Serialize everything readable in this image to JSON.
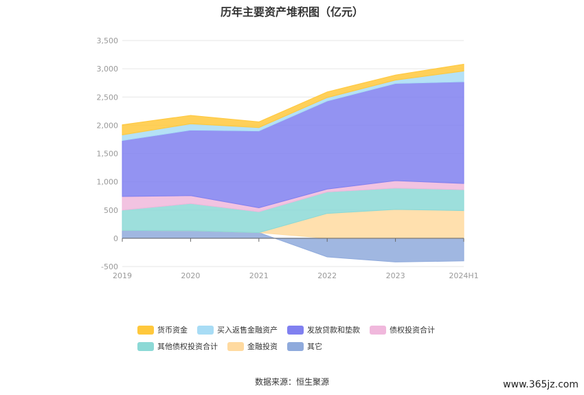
{
  "chart_data": {
    "type": "area",
    "title": "历年主要资产堆积图（亿元）",
    "categories": [
      "2019",
      "2020",
      "2021",
      "2022",
      "2023",
      "2024H1"
    ],
    "ylim": [
      -500,
      3500
    ],
    "yticks": [
      "3,500",
      "3,000",
      "2,500",
      "2,000",
      "1,500",
      "1,000",
      "500",
      "0",
      "-500"
    ],
    "ytick_values": [
      3500,
      3000,
      2500,
      2000,
      1500,
      1000,
      500,
      0,
      -500
    ],
    "grid": true,
    "legend_position": "bottom",
    "stacked": true,
    "series": [
      {
        "name": "其它",
        "color": "#8faadc",
        "values": [
          140,
          135,
          100,
          -330,
          -420,
          -400
        ]
      },
      {
        "name": "金融投资",
        "color": "#ffdaa0",
        "values": [
          0,
          0,
          0,
          440,
          510,
          490
        ]
      },
      {
        "name": "其他债权投资合计",
        "color": "#8cd9d6",
        "values": [
          360,
          480,
          370,
          380,
          380,
          370
        ]
      },
      {
        "name": "债权投资合计",
        "color": "#f0b8dc",
        "values": [
          240,
          140,
          70,
          50,
          130,
          110
        ]
      },
      {
        "name": "发放贷款和垫款",
        "color": "#8080f0",
        "values": [
          990,
          1160,
          1360,
          1560,
          1720,
          1800
        ]
      },
      {
        "name": "买入返售金融资产",
        "color": "#a8dcf5",
        "values": [
          100,
          110,
          60,
          60,
          60,
          190
        ]
      },
      {
        "name": "货币资金",
        "color": "#ffc83c",
        "values": [
          180,
          150,
          100,
          100,
          90,
          120
        ]
      }
    ],
    "legend_order": [
      "货币资金",
      "买入返售金融资产",
      "发放贷款和垫款",
      "债权投资合计",
      "其他债权投资合计",
      "金融投资",
      "其它"
    ]
  },
  "source": "数据来源：恒生聚源",
  "watermark": "www.365jz.com"
}
